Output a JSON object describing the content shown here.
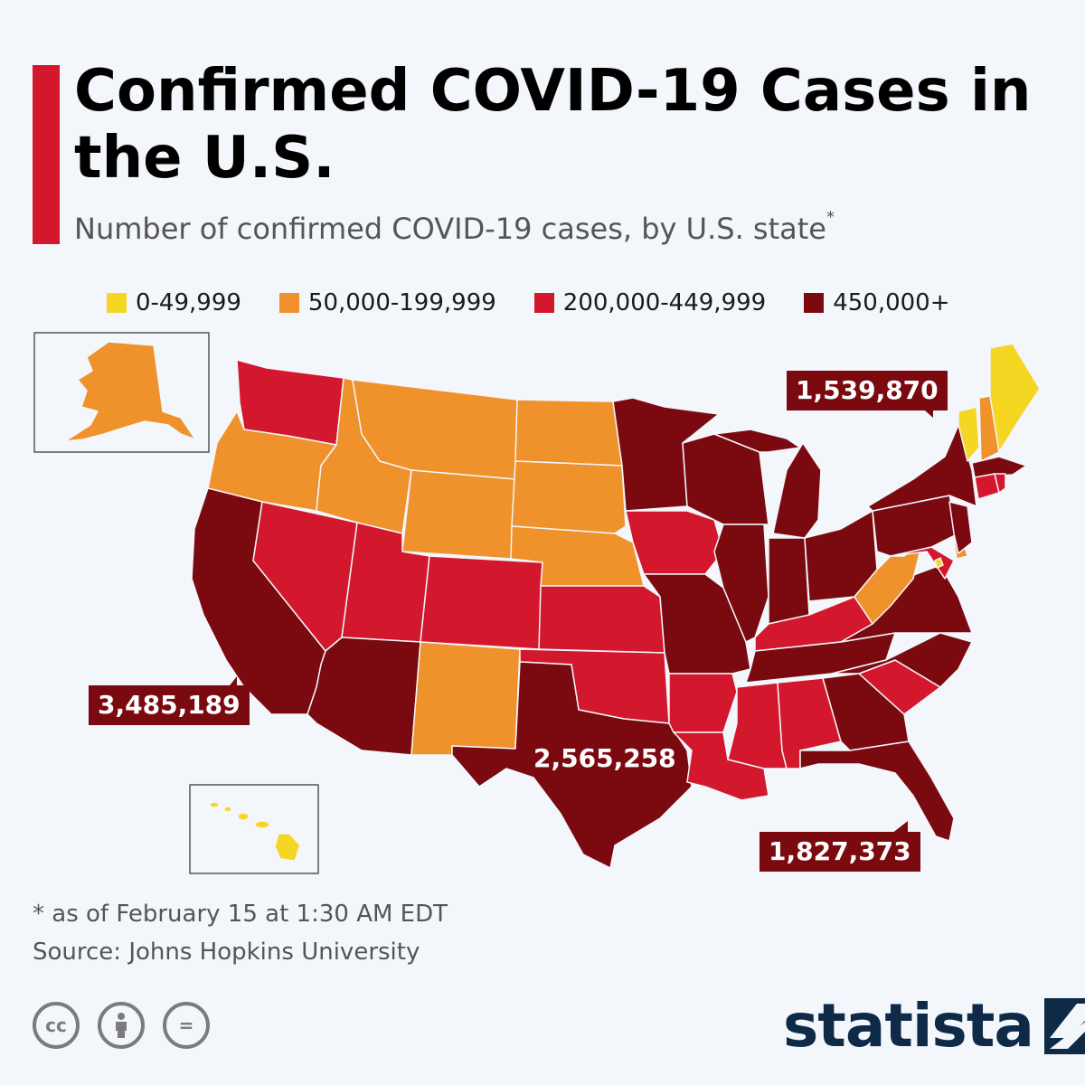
{
  "header": {
    "title": "Confirmed COVID-19 Cases in the U.S.",
    "subtitle": "Number of confirmed COVID-19 cases, by U.S. state",
    "subtitle_mark": "*"
  },
  "legend": {
    "items": [
      {
        "label": "0-49,999",
        "color": "#f5d623"
      },
      {
        "label": "50,000-199,999",
        "color": "#ef922c"
      },
      {
        "label": "200,000-449,999",
        "color": "#d3172d"
      },
      {
        "label": "450,000+",
        "color": "#7b0a10"
      }
    ]
  },
  "map": {
    "callouts": {
      "california": "3,485,189",
      "texas": "2,565,258",
      "new_york": "1,539,870",
      "florida": "1,827,373"
    }
  },
  "footer": {
    "note": "* as of February 15 at 1:30 AM EDT",
    "source": "Source: Johns Hopkins University",
    "license_icons": [
      "cc-icon",
      "attribution-icon",
      "no-derivatives-icon"
    ],
    "logo_text": "statista",
    "cc_label": "cc",
    "nd_label": "="
  }
}
